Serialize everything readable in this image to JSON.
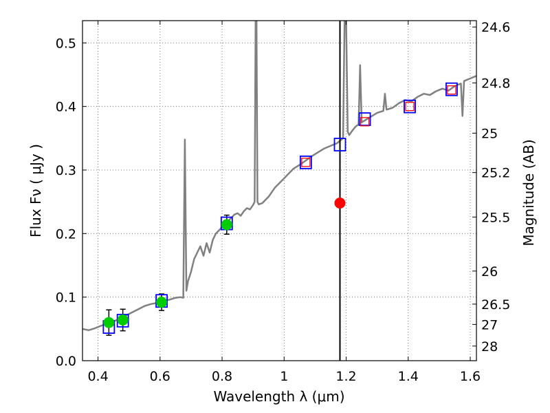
{
  "chart_data": {
    "type": "line",
    "xlabel": "Wavelength  λ (μm)",
    "ylabel": "Flux  Fν  ( μJy )",
    "y2label": "Magnitude (AB)",
    "xlim": [
      0.35,
      1.62
    ],
    "ylim": [
      0.0,
      0.535
    ],
    "grid": true,
    "x_ticks": [
      0.4,
      0.6,
      0.8,
      1.0,
      1.2,
      1.4,
      1.6
    ],
    "x_tick_labels": [
      "0.4",
      "0.6",
      "0.8",
      "1",
      "1.2",
      "1.4",
      "1.6"
    ],
    "y_ticks": [
      0.0,
      0.1,
      0.2,
      0.3,
      0.4,
      0.5
    ],
    "y_tick_labels": [
      "0.0",
      "0.1",
      "0.2",
      "0.3",
      "0.4",
      "0.5"
    ],
    "magnitude_ticks": [
      {
        "label": "24.6",
        "flux": 0.525
      },
      {
        "label": "24.8",
        "flux": 0.437
      },
      {
        "label": "25",
        "flux": 0.358
      },
      {
        "label": "25.2",
        "flux": 0.296
      },
      {
        "label": "25.5",
        "flux": 0.226
      },
      {
        "label": "26",
        "flux": 0.141
      },
      {
        "label": "26.5",
        "flux": 0.089
      },
      {
        "label": "27",
        "flux": 0.057
      },
      {
        "label": "28",
        "flux": 0.023
      }
    ],
    "vertical_line_x": 1.18,
    "series": [
      {
        "name": "model spectrum",
        "color": "#808080",
        "x": [
          0.35,
          0.37,
          0.39,
          0.41,
          0.43,
          0.45,
          0.47,
          0.49,
          0.51,
          0.53,
          0.55,
          0.57,
          0.59,
          0.61,
          0.63,
          0.65,
          0.665,
          0.675,
          0.68,
          0.685,
          0.69,
          0.7,
          0.71,
          0.72,
          0.73,
          0.74,
          0.75,
          0.76,
          0.77,
          0.78,
          0.79,
          0.8,
          0.81,
          0.82,
          0.83,
          0.84,
          0.85,
          0.86,
          0.87,
          0.88,
          0.89,
          0.9,
          0.905,
          0.908,
          0.911,
          0.914,
          0.918,
          0.93,
          0.95,
          0.97,
          0.99,
          1.01,
          1.03,
          1.05,
          1.07,
          1.09,
          1.11,
          1.13,
          1.15,
          1.17,
          1.18,
          1.19,
          1.195,
          1.2,
          1.205,
          1.21,
          1.22,
          1.23,
          1.24,
          1.245,
          1.25,
          1.26,
          1.28,
          1.3,
          1.32,
          1.325,
          1.33,
          1.35,
          1.37,
          1.39,
          1.41,
          1.43,
          1.45,
          1.47,
          1.49,
          1.51,
          1.53,
          1.55,
          1.57,
          1.575,
          1.58,
          1.6,
          1.62
        ],
        "y": [
          0.05,
          0.048,
          0.051,
          0.055,
          0.058,
          0.062,
          0.066,
          0.071,
          0.076,
          0.081,
          0.086,
          0.089,
          0.091,
          0.094,
          0.096,
          0.099,
          0.1,
          0.099,
          0.348,
          0.11,
          0.125,
          0.14,
          0.16,
          0.17,
          0.18,
          0.165,
          0.185,
          0.17,
          0.19,
          0.2,
          0.205,
          0.21,
          0.215,
          0.22,
          0.225,
          0.23,
          0.232,
          0.228,
          0.235,
          0.24,
          0.238,
          0.245,
          0.25,
          0.535,
          0.535,
          0.25,
          0.246,
          0.248,
          0.258,
          0.272,
          0.282,
          0.292,
          0.302,
          0.308,
          0.315,
          0.322,
          0.328,
          0.334,
          0.338,
          0.342,
          0.346,
          0.35,
          0.535,
          0.535,
          0.36,
          0.355,
          0.362,
          0.368,
          0.372,
          0.465,
          0.375,
          0.378,
          0.384,
          0.39,
          0.393,
          0.42,
          0.395,
          0.398,
          0.405,
          0.41,
          0.408,
          0.415,
          0.42,
          0.418,
          0.424,
          0.428,
          0.425,
          0.432,
          0.436,
          0.385,
          0.44,
          0.444,
          0.448
        ]
      },
      {
        "name": "observed photometry",
        "type": "scatter",
        "color": "#00cc00",
        "x": [
          0.435,
          0.48,
          0.605,
          0.815
        ],
        "y": [
          0.06,
          0.064,
          0.092,
          0.214
        ],
        "yerr": [
          0.02,
          0.017,
          0.013,
          0.015
        ]
      },
      {
        "name": "model photometry (blue squares)",
        "type": "scatter",
        "color": "#0000ff",
        "x": [
          0.435,
          0.48,
          0.605,
          0.815,
          1.07,
          1.18,
          1.26,
          1.405,
          1.54
        ],
        "y": [
          0.053,
          0.063,
          0.094,
          0.216,
          0.312,
          0.34,
          0.38,
          0.4,
          0.427
        ]
      },
      {
        "name": "predicted photometry (red squares)",
        "type": "scatter",
        "color": "#ff0000",
        "x": [
          1.07,
          1.26,
          1.405,
          1.54
        ],
        "y": [
          0.312,
          0.376,
          0.4,
          0.426
        ]
      },
      {
        "name": "highlighted point",
        "type": "scatter",
        "color": "#ff0000",
        "x": [
          1.18
        ],
        "y": [
          0.248
        ]
      }
    ]
  }
}
